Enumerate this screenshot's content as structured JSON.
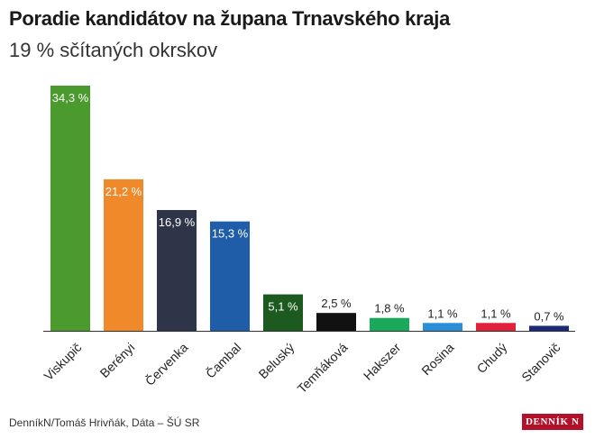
{
  "header": {
    "title": "Poradie kandidátov na župana Trnavského kraja",
    "subtitle": "19 % sčítaných okrskov"
  },
  "footer": {
    "source": "DenníkN/Tomáš Hrivňák, Dáta – ŠÚ SR",
    "brand": "DENNÍK N"
  },
  "chart_data": {
    "type": "bar",
    "title": "Poradie kandidátov na župana Trnavského kraja",
    "subtitle": "19 % sčítaných okrskov",
    "categories": [
      "Viskupič",
      "Berényi",
      "Červenka",
      "Čambal",
      "Beluský",
      "Temňáková",
      "Hakszer",
      "Rosina",
      "Chudý",
      "Stanovič"
    ],
    "values": [
      34.3,
      21.2,
      16.9,
      15.3,
      5.1,
      2.5,
      1.8,
      1.1,
      1.1,
      0.7
    ],
    "value_labels": [
      "34,3 %",
      "21,2 %",
      "16,9 %",
      "15,3 %",
      "5,1 %",
      "2,5 %",
      "1,8 %",
      "1,1 %",
      "1,1 %",
      "0,7 %"
    ],
    "colors": [
      "#4a9a2e",
      "#f0892a",
      "#2f3549",
      "#1f5da8",
      "#1d5a1f",
      "#111111",
      "#1aa85a",
      "#2b8fd8",
      "#e0223a",
      "#1a2a78"
    ],
    "ylim": [
      0,
      34.3
    ],
    "grid": false,
    "legend": "none"
  }
}
